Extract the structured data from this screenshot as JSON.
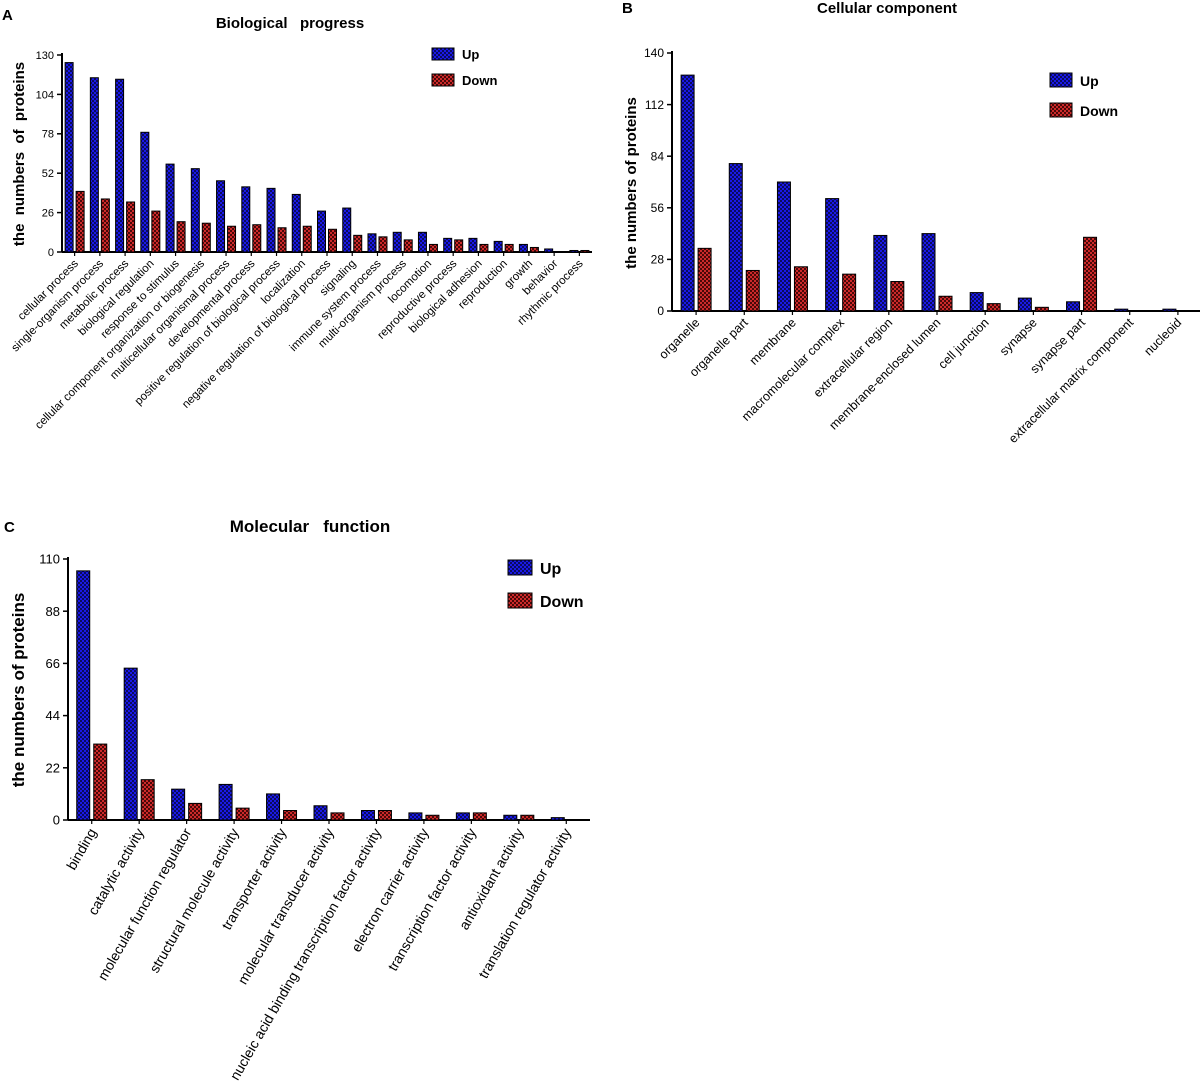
{
  "colors": {
    "up": "#1a1ae6",
    "down": "#c42222",
    "axis": "#000000"
  },
  "panels": [
    {
      "panel_label": "A",
      "chart_data": {
        "type": "bar",
        "title": "Biological   progress",
        "xlabel": "",
        "ylabel": "the  numbers  of  proteins",
        "ylim": [
          0,
          130
        ],
        "yticks": [
          "0",
          "26",
          "52",
          "78",
          "104",
          "130"
        ],
        "legend": [
          "Up",
          "Down"
        ],
        "categories": [
          "cellular process",
          "single-organism process",
          "metabolic process",
          "biological regulation",
          "response to stimulus",
          "cellular component organization or biogenesis",
          "multicellular organismal process",
          "developmental process",
          "positive regulation of biological process",
          "localization",
          "negative regulation of biological process",
          "signaling",
          "immune system process",
          "multi-organism process",
          "locomotion",
          "reproductive process",
          "biological adhesion",
          "reproduction",
          "growth",
          "behavior",
          "rhythmic process"
        ],
        "series": [
          {
            "name": "Up",
            "values": [
              125,
              115,
              114,
              79,
              58,
              55,
              47,
              43,
              42,
              38,
              27,
              29,
              12,
              13,
              13,
              9,
              9,
              7,
              5,
              2,
              1
            ]
          },
          {
            "name": "Down",
            "values": [
              40,
              35,
              33,
              27,
              20,
              19,
              17,
              18,
              16,
              17,
              15,
              11,
              10,
              8,
              5,
              8,
              5,
              5,
              3,
              0,
              1
            ]
          }
        ]
      }
    },
    {
      "panel_label": "B",
      "chart_data": {
        "type": "bar",
        "title": "Cellular component",
        "xlabel": "",
        "ylabel": "the numbers of proteins",
        "ylim": [
          0,
          140
        ],
        "yticks": [
          "0",
          "28",
          "56",
          "84",
          "112",
          "140"
        ],
        "legend": [
          "Up",
          "Down"
        ],
        "categories": [
          "organelle",
          "organelle part",
          "membrane",
          "macromolecular complex",
          "extracellular region",
          "membrane-enclosed lumen",
          "cell junction",
          "synapse",
          "synapse part",
          "extracellular matrix component",
          "nucleoid"
        ],
        "series": [
          {
            "name": "Up",
            "values": [
              128,
              80,
              70,
              61,
              41,
              42,
              10,
              7,
              5,
              1,
              1
            ]
          },
          {
            "name": "Down",
            "values": [
              34,
              22,
              24,
              20,
              16,
              8,
              4,
              2,
              40,
              0,
              0
            ]
          }
        ]
      }
    },
    {
      "panel_label": "C",
      "chart_data": {
        "type": "bar",
        "title": "Molecular   function",
        "xlabel": "",
        "ylabel": "the numbers of proteins",
        "ylim": [
          0,
          110
        ],
        "yticks": [
          "0",
          "22",
          "44",
          "66",
          "88",
          "110"
        ],
        "legend": [
          "Up",
          "Down"
        ],
        "categories": [
          "binding",
          "catalytic activity",
          "molecular function regulator",
          "structural molecule activity",
          "transporter activity",
          "molecular transducer activity",
          "nucleic acid binding transcription factor activity",
          "electron carrier activity",
          "transcription factor activity",
          "antioxidant activity",
          "translation regulator activity"
        ],
        "series": [
          {
            "name": "Up",
            "values": [
              105,
              64,
              13,
              15,
              11,
              6,
              4,
              3,
              3,
              2,
              1
            ]
          },
          {
            "name": "Down",
            "values": [
              32,
              17,
              7,
              5,
              4,
              3,
              4,
              2,
              3,
              2,
              0
            ]
          }
        ]
      }
    }
  ]
}
